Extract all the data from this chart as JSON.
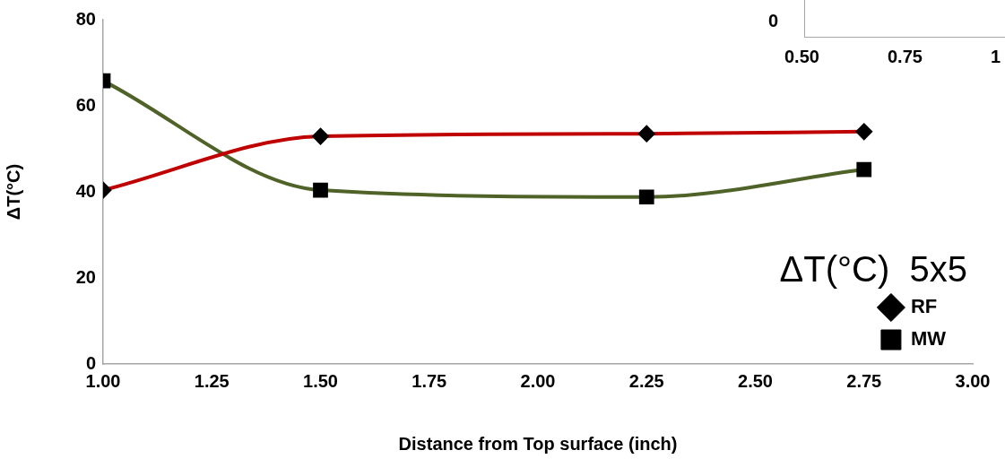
{
  "chart_data": {
    "type": "line",
    "title": "ΔT(°C)  5x5",
    "xlabel": "Distance from Top surface (inch)",
    "ylabel": "ΔT(°C)",
    "x": [
      1,
      1.5,
      2.25,
      2.75
    ],
    "series": [
      {
        "name": "RF",
        "color": "#c00000",
        "marker": "diamond",
        "values": [
          40.4,
          52.9,
          53.5,
          54
        ]
      },
      {
        "name": "MW",
        "color": "#4f6228",
        "marker": "square",
        "values": [
          65.8,
          40.4,
          38.8,
          45.2
        ]
      }
    ],
    "xlim": [
      1,
      3
    ],
    "xticks": [
      {
        "value": 1,
        "label": "1.00"
      },
      {
        "value": 1.25,
        "label": "1.25"
      },
      {
        "value": 1.5,
        "label": "1.50"
      },
      {
        "value": 1.75,
        "label": "1.75"
      },
      {
        "value": 2,
        "label": "2.00"
      },
      {
        "value": 2.25,
        "label": "2.25"
      },
      {
        "value": 2.5,
        "label": "2.50"
      },
      {
        "value": 2.75,
        "label": "2.75"
      },
      {
        "value": 3,
        "label": "3.00"
      }
    ],
    "ylim": [
      0,
      80
    ],
    "yticks": [
      0,
      20,
      40,
      60,
      80
    ],
    "grid": false,
    "legend": "bottom right",
    "line_style": "solid",
    "annotations": [
      "0",
      "0.50",
      "0.75",
      "1"
    ]
  }
}
